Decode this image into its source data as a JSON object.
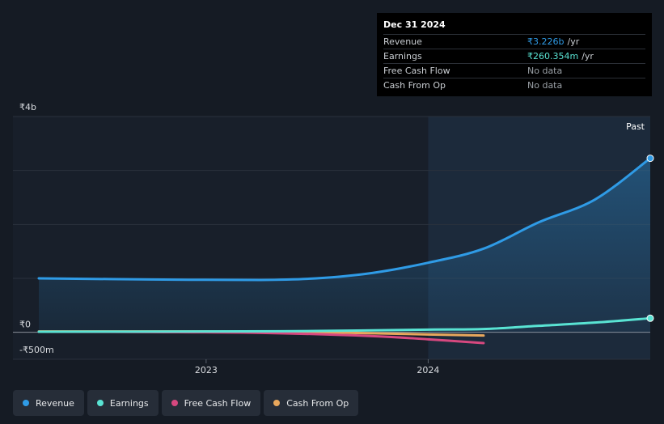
{
  "tooltip": {
    "date": "Dec 31 2024",
    "rows": [
      {
        "label": "Revenue",
        "value": "₹3.226b",
        "unit": "/yr"
      },
      {
        "label": "Earnings",
        "value": "₹260.354m",
        "unit": "/yr"
      },
      {
        "label": "Free Cash Flow",
        "value": "No data",
        "unit": ""
      },
      {
        "label": "Cash From Op",
        "value": "No data",
        "unit": ""
      }
    ]
  },
  "legend": [
    {
      "label": "Revenue",
      "color": "#2f9be6"
    },
    {
      "label": "Earnings",
      "color": "#59e3d3"
    },
    {
      "label": "Free Cash Flow",
      "color": "#d6487f"
    },
    {
      "label": "Cash From Op",
      "color": "#e8a75c"
    }
  ],
  "chart_data": {
    "type": "line",
    "y_tick_labels": [
      "₹4b",
      "₹0",
      "-₹500m"
    ],
    "x_tick_labels": [
      "2023",
      "2024"
    ],
    "past_label": "Past",
    "ylim": [
      -500000000,
      4000000000
    ],
    "xlim": [
      "2022-04-01",
      "2024-12-31"
    ],
    "past_region_start": "2024-01-01",
    "grid": true,
    "series": [
      {
        "name": "Revenue",
        "color": "#2f9be6",
        "fill": true,
        "x": [
          "2022-04-01",
          "2022-10-01",
          "2023-04-01",
          "2023-07-01",
          "2023-10-01",
          "2024-01-01",
          "2024-04-01",
          "2024-07-01",
          "2024-10-01",
          "2024-12-31"
        ],
        "y": [
          1000000000,
          980000000,
          970000000,
          1000000000,
          1100000000,
          1290000000,
          1550000000,
          2040000000,
          2460000000,
          3226000000
        ]
      },
      {
        "name": "Earnings",
        "color": "#59e3d3",
        "fill": false,
        "x": [
          "2022-04-01",
          "2023-01-01",
          "2023-07-01",
          "2024-01-01",
          "2024-04-01",
          "2024-07-01",
          "2024-10-01",
          "2024-12-31"
        ],
        "y": [
          10000000,
          15000000,
          25000000,
          50000000,
          60000000,
          120000000,
          180000000,
          260354000
        ]
      },
      {
        "name": "Free Cash Flow",
        "color": "#d6487f",
        "fill": false,
        "x": [
          "2022-04-01",
          "2022-10-01",
          "2023-04-01",
          "2023-10-01",
          "2024-01-01",
          "2024-04-01"
        ],
        "y": [
          10000000,
          5000000,
          -10000000,
          -70000000,
          -130000000,
          -200000000
        ]
      },
      {
        "name": "Cash From Op",
        "color": "#e8a75c",
        "fill": false,
        "x": [
          "2022-04-01",
          "2023-01-01",
          "2023-07-01",
          "2024-01-01",
          "2024-04-01"
        ],
        "y": [
          15000000,
          15000000,
          0,
          -40000000,
          -60000000
        ]
      }
    ]
  }
}
